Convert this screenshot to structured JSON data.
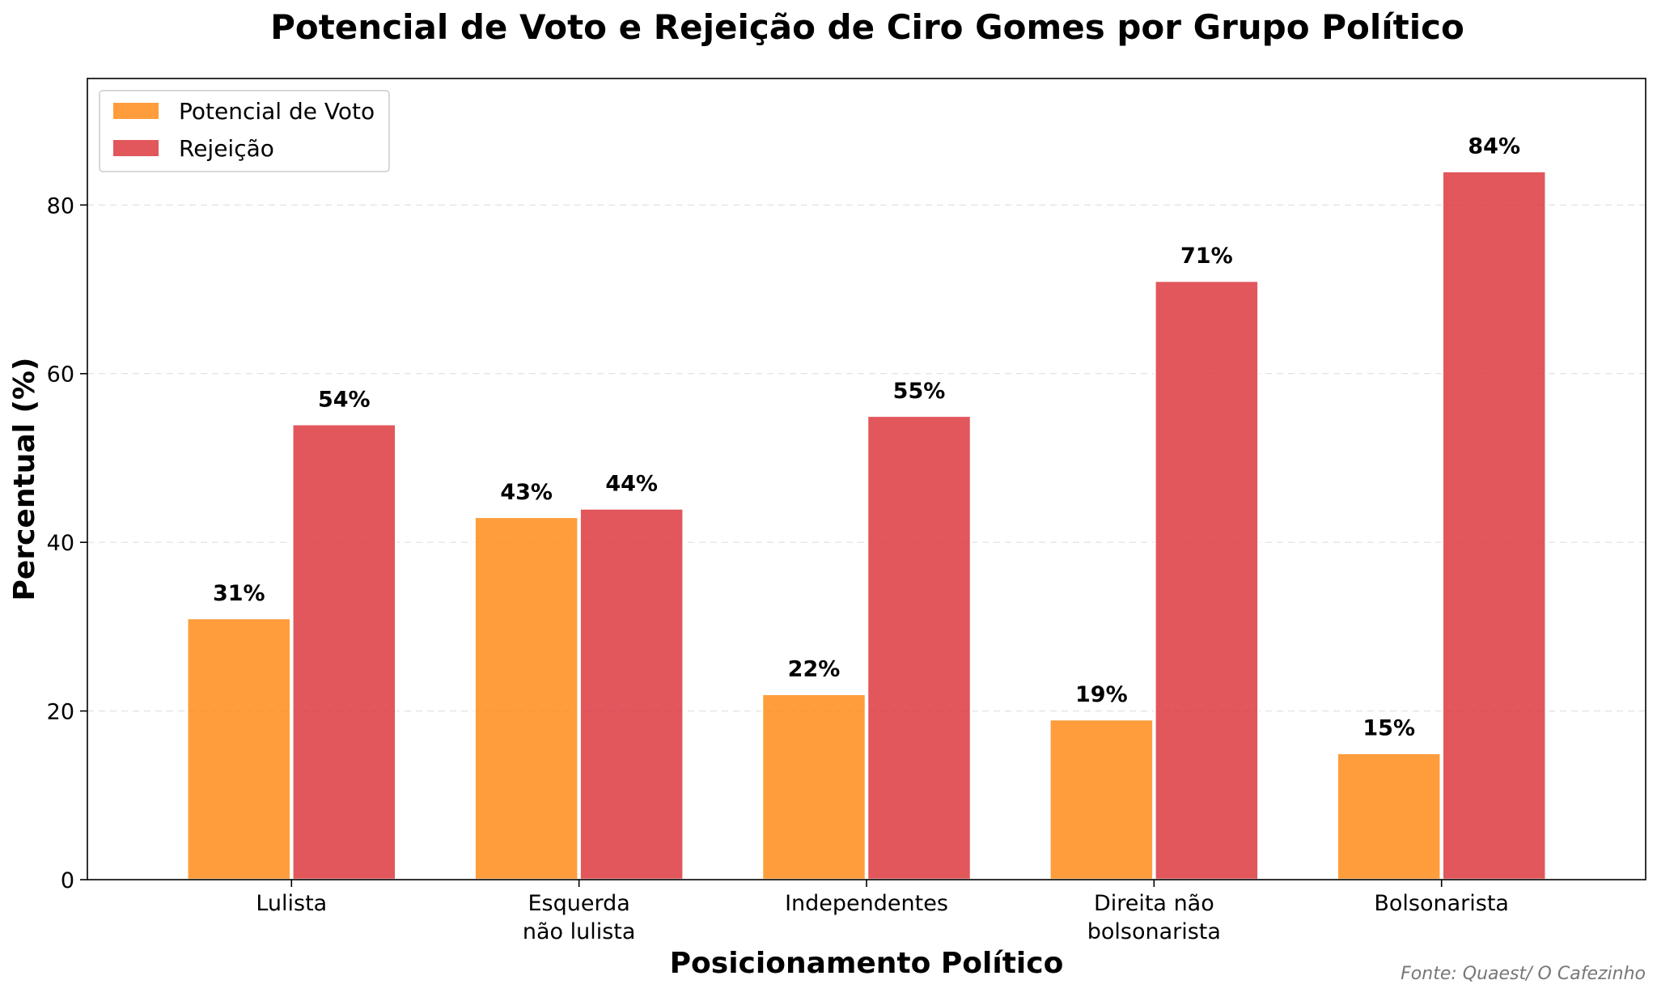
{
  "chart_data": {
    "type": "bar",
    "title": "Potencial de Voto e Rejeição de Ciro Gomes por Grupo Político",
    "xlabel": "Posicionamento Político",
    "ylabel": "Percentual (%)",
    "categories": [
      [
        "Lulista"
      ],
      [
        "Esquerda",
        "não lulista"
      ],
      [
        "Independentes"
      ],
      [
        "Direita não",
        "bolsonarista"
      ],
      [
        "Bolsonarista"
      ]
    ],
    "series": [
      {
        "name": "Potencial de Voto",
        "color": "#ff8c1a",
        "values": [
          31,
          43,
          22,
          19,
          15
        ]
      },
      {
        "name": "Rejeição",
        "color": "#dc3a3f",
        "values": [
          54,
          44,
          55,
          71,
          84
        ]
      }
    ],
    "value_suffix": "%",
    "ylim": [
      0,
      95
    ],
    "yticks": [
      0,
      20,
      40,
      60,
      80
    ],
    "grid": true,
    "legend_position": "top-left"
  },
  "source_note": "Fonte: Quaest/ O Cafezinho"
}
